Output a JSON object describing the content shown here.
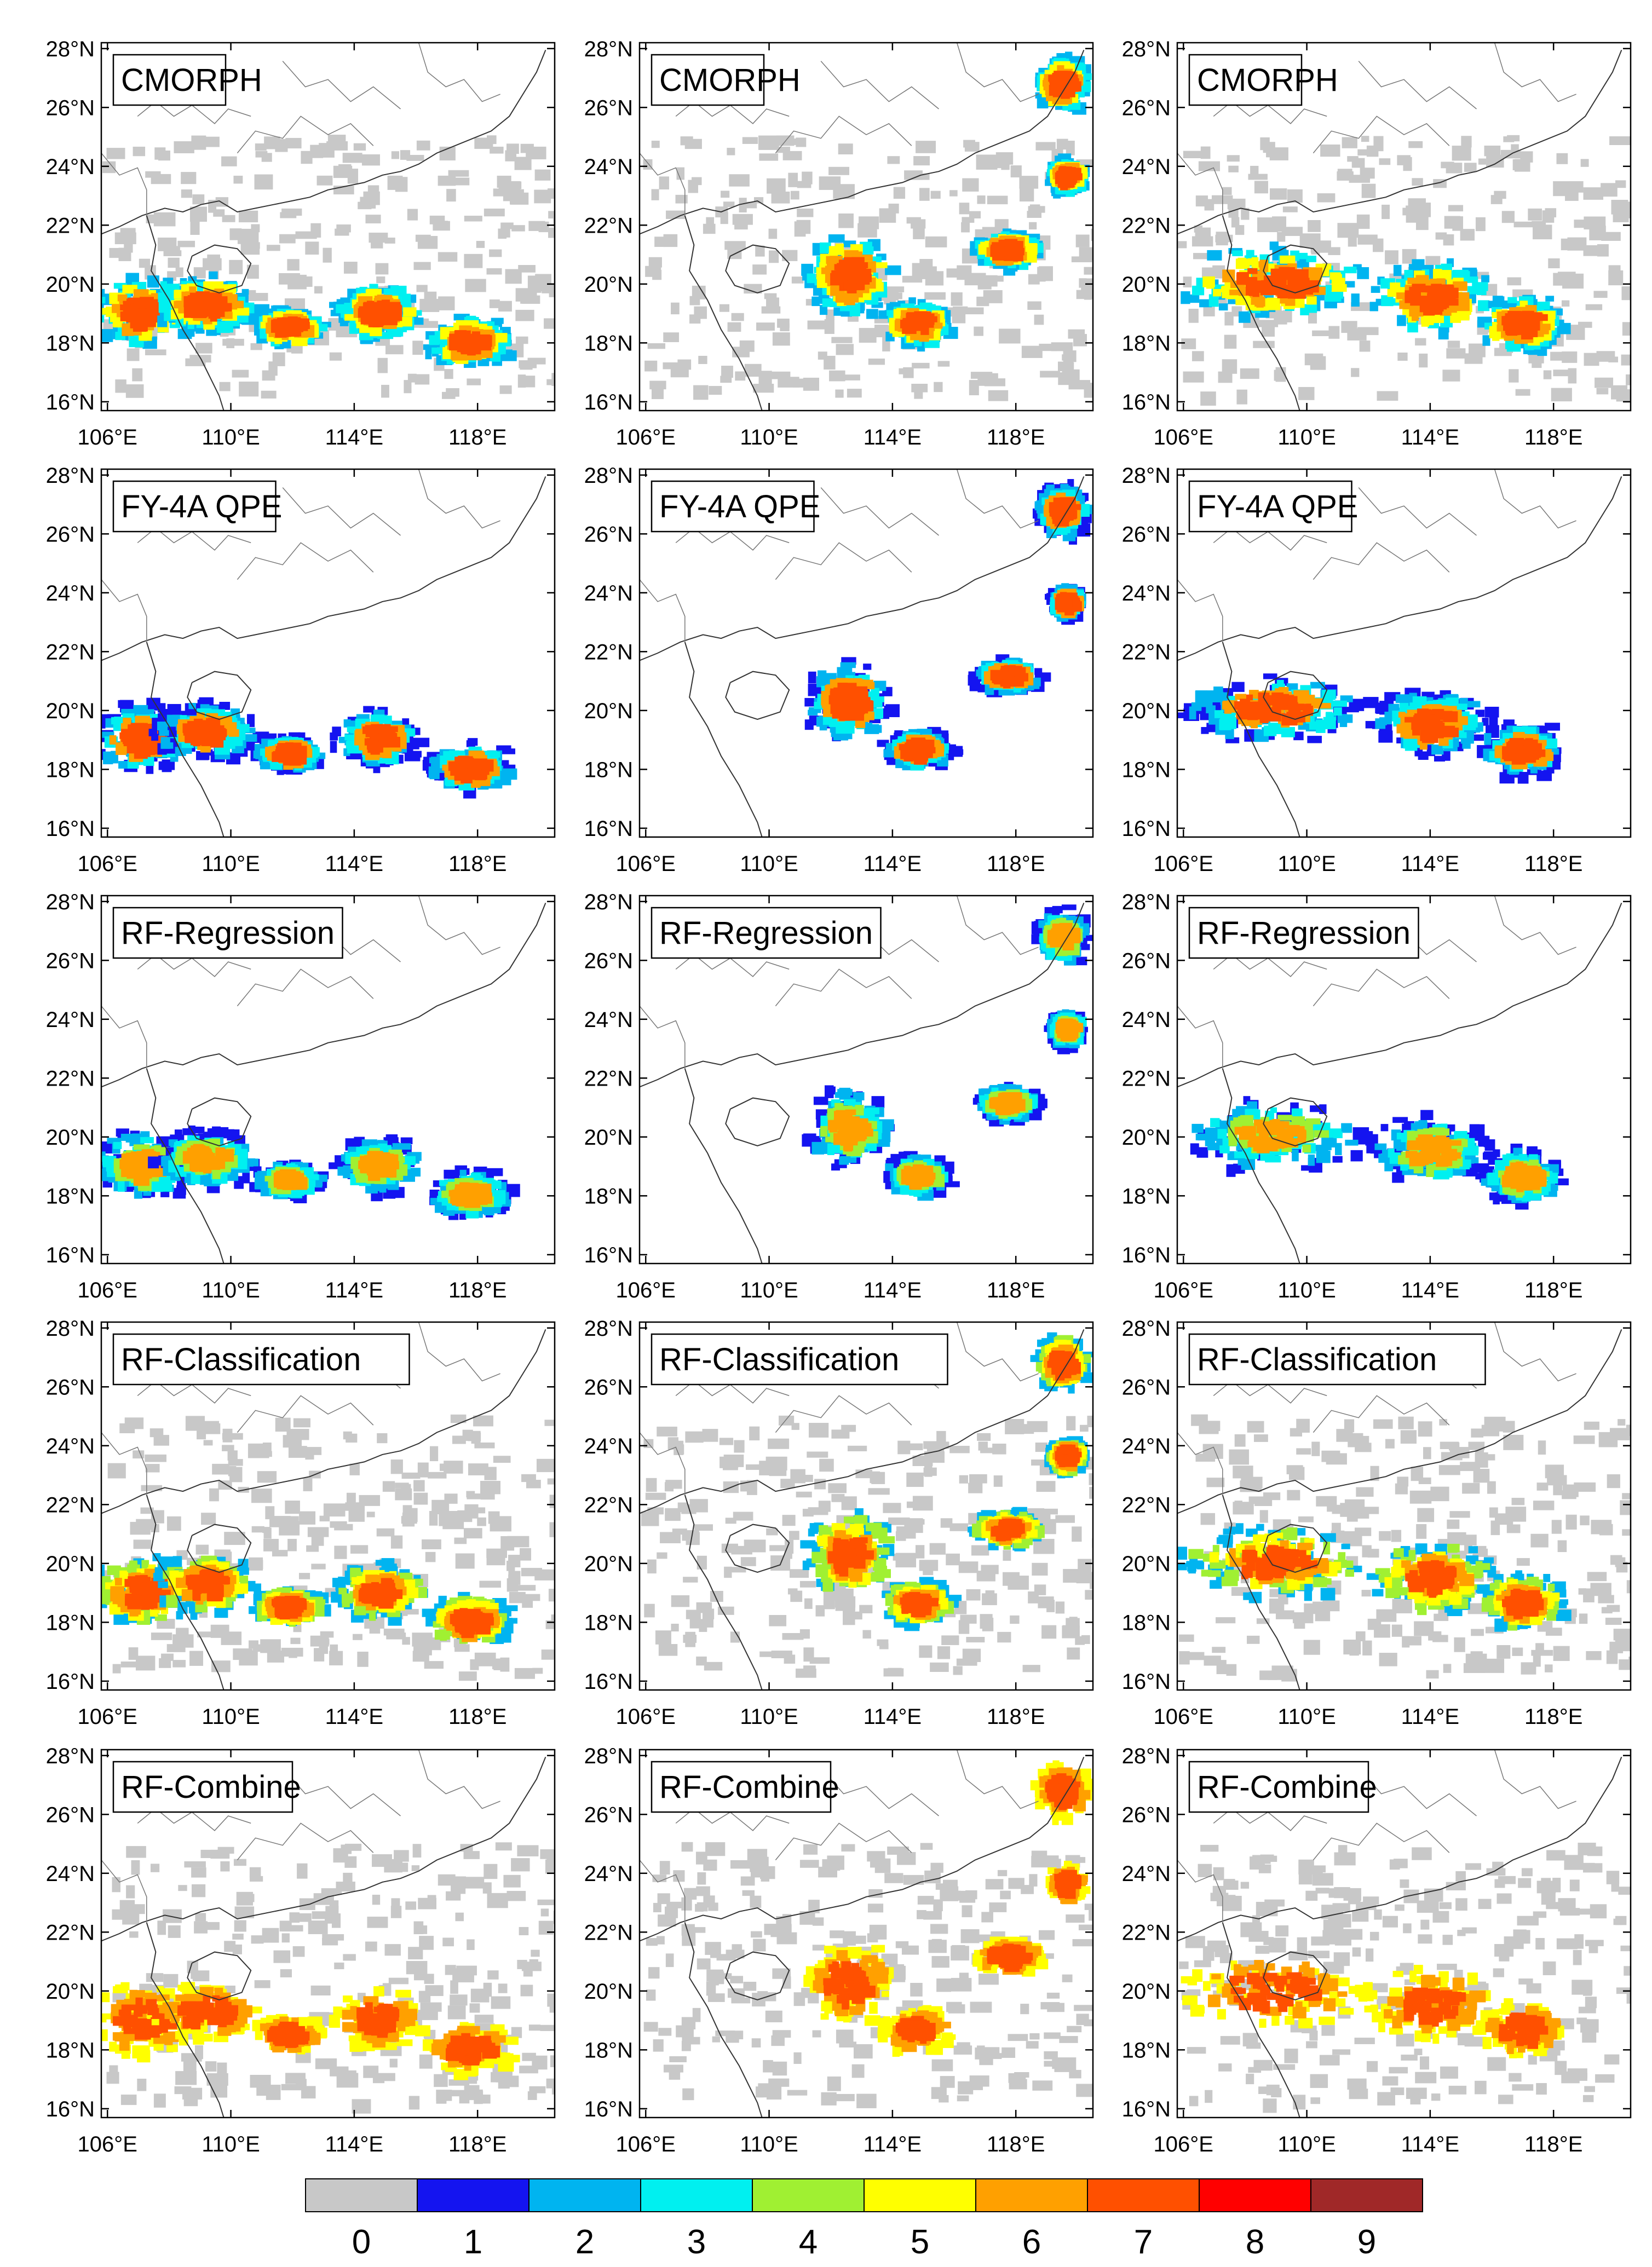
{
  "figure": {
    "rows": [
      {
        "label": "CMORPH"
      },
      {
        "label": "FY-4A QPE"
      },
      {
        "label": "RF-Regression"
      },
      {
        "label": "RF-Classification"
      },
      {
        "label": "RF-Combine"
      }
    ],
    "columns": 3,
    "lat_ticks": [
      "16°N",
      "18°N",
      "20°N",
      "22°N",
      "24°N",
      "26°N",
      "28°N"
    ],
    "lat_values": [
      16,
      18,
      20,
      22,
      24,
      26,
      28
    ],
    "lon_ticks": [
      "106°E",
      "110°E",
      "114°E",
      "118°E"
    ],
    "lon_values": [
      106,
      110,
      114,
      118
    ],
    "extent": {
      "lon": [
        105.8,
        120.5
      ],
      "lat": [
        15.7,
        28.2
      ]
    }
  },
  "colorbar": {
    "labels": [
      "0",
      "1",
      "2",
      "3",
      "4",
      "5",
      "6",
      "7",
      "8",
      "9"
    ],
    "colors": [
      "#c8c8c8",
      "#1414f0",
      "#00b4f0",
      "#00f0f0",
      "#a0f032",
      "#ffff00",
      "#ffa000",
      "#ff5000",
      "#ff0000",
      "#a02828"
    ]
  },
  "chart_data": {
    "type": "heatmap",
    "note_levels": [
      0,
      1,
      2,
      3,
      4,
      5,
      6,
      7,
      8,
      9
    ],
    "panels": [
      {
        "row": "CMORPH",
        "col": 1
      },
      {
        "row": "CMORPH",
        "col": 2
      },
      {
        "row": "CMORPH",
        "col": 3
      },
      {
        "row": "FY-4A QPE",
        "col": 1
      },
      {
        "row": "FY-4A QPE",
        "col": 2
      },
      {
        "row": "FY-4A QPE",
        "col": 3
      },
      {
        "row": "RF-Regression",
        "col": 1
      },
      {
        "row": "RF-Regression",
        "col": 2
      },
      {
        "row": "RF-Regression",
        "col": 3
      },
      {
        "row": "RF-Classification",
        "col": 1
      },
      {
        "row": "RF-Classification",
        "col": 2
      },
      {
        "row": "RF-Classification",
        "col": 3
      },
      {
        "row": "RF-Combine",
        "col": 1
      },
      {
        "row": "RF-Combine",
        "col": 2
      },
      {
        "row": "RF-Combine",
        "col": 3
      }
    ]
  }
}
